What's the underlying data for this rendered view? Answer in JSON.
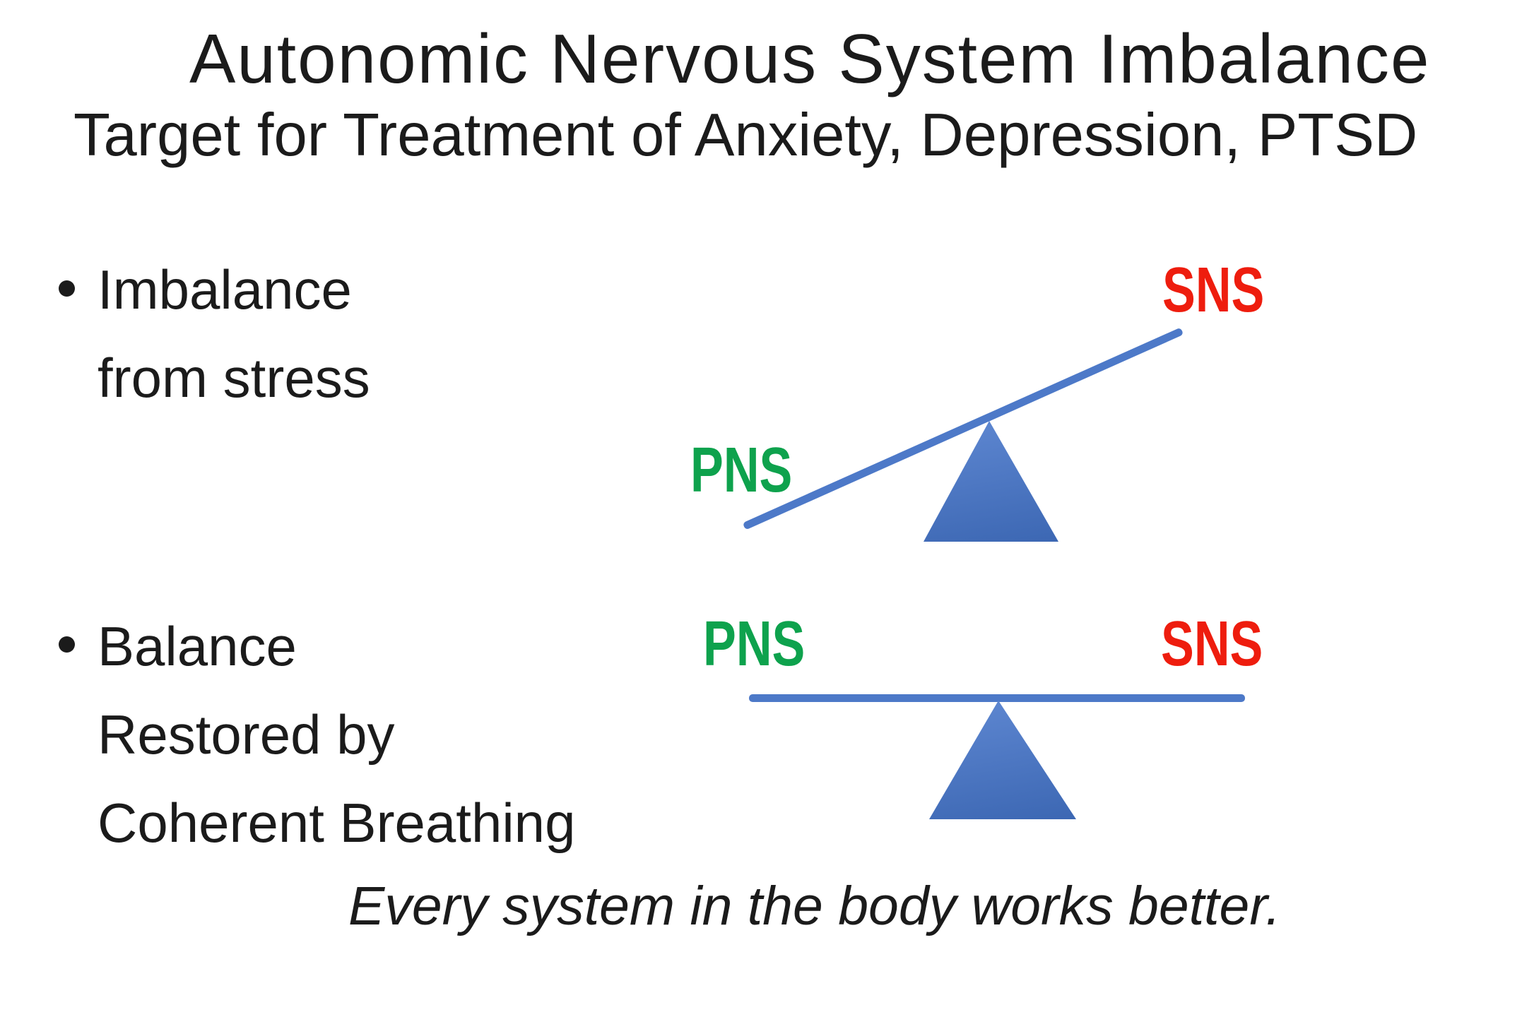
{
  "slide": {
    "title": "Autonomic Nervous System Imbalance",
    "subtitle": "Target for Treatment of Anxiety, Depression, PTSD",
    "bullet_char": "•",
    "bullets": [
      {
        "lines": [
          "Imbalance",
          "from stress"
        ]
      },
      {
        "lines": [
          "Balance",
          "Restored by",
          "Coherent Breathing"
        ]
      }
    ],
    "diagram_imbalanced": {
      "left_label": "PNS",
      "right_label": "SNS"
    },
    "diagram_balanced": {
      "left_label": "PNS",
      "right_label": "SNS"
    },
    "footer": "Every system in the body works better.",
    "colors": {
      "pns_green": "#0ea24d",
      "sns_red": "#ee1d0e",
      "beam_blue": "#4d79c8",
      "triangle_top": "#5f88d2",
      "triangle_bottom": "#3c67b3",
      "text": "#1b1b1b"
    }
  }
}
